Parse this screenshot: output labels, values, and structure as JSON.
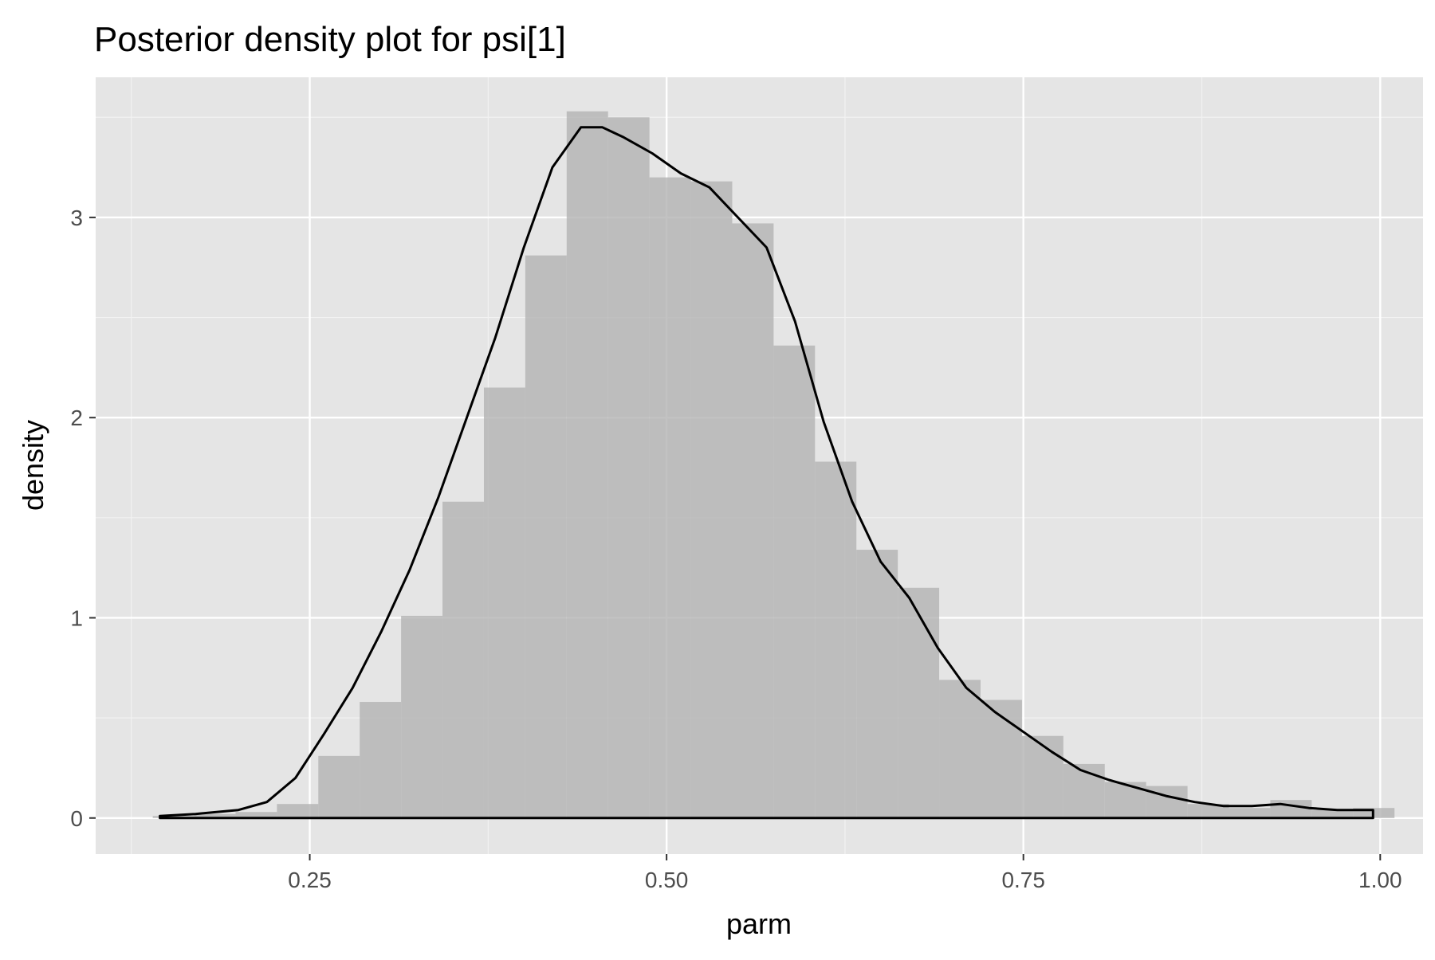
{
  "title": "Posterior density plot for psi[1]",
  "colors": {
    "panel_background": "#e5e5e5",
    "grid_major": "#ffffff",
    "grid_minor": "#f2f2f2",
    "histogram_fill": "#b3b3b3",
    "density_line": "#000000",
    "tick_label": "#4d4d4d",
    "axis_tick": "#333333"
  },
  "chart_data": {
    "type": "area",
    "title": "Posterior density plot for psi[1]",
    "xlabel": "parm",
    "ylabel": "density",
    "xlim": [
      0.1,
      1.03
    ],
    "ylim": [
      -0.18,
      3.7
    ],
    "grid": true,
    "x_ticks": [
      {
        "value": 0.25,
        "label": "0.25"
      },
      {
        "value": 0.5,
        "label": "0.50"
      },
      {
        "value": 0.75,
        "label": "0.75"
      },
      {
        "value": 1.0,
        "label": "1.00"
      }
    ],
    "x_minor_ticks": [
      0.125,
      0.375,
      0.625,
      0.875
    ],
    "y_ticks": [
      {
        "value": 0,
        "label": "0"
      },
      {
        "value": 1,
        "label": "1"
      },
      {
        "value": 2,
        "label": "2"
      },
      {
        "value": 3,
        "label": "3"
      }
    ],
    "y_minor_ticks": [
      0.5,
      1.5,
      2.5,
      3.5
    ],
    "histogram": {
      "bin_width": 0.029,
      "bin_starts": [
        0.14,
        0.169,
        0.198,
        0.227,
        0.256,
        0.285,
        0.314,
        0.343,
        0.372,
        0.401,
        0.43,
        0.459,
        0.488,
        0.517,
        0.546,
        0.575,
        0.604,
        0.633,
        0.662,
        0.691,
        0.72,
        0.749,
        0.778,
        0.807,
        0.836,
        0.865,
        0.894,
        0.923,
        0.952,
        0.981
      ],
      "densities": [
        0.01,
        0.02,
        0.03,
        0.07,
        0.31,
        0.58,
        1.01,
        1.58,
        2.15,
        2.81,
        3.53,
        3.5,
        3.2,
        3.18,
        2.97,
        2.36,
        1.78,
        1.34,
        1.15,
        0.69,
        0.59,
        0.41,
        0.27,
        0.18,
        0.16,
        0.07,
        0.05,
        0.09,
        0.04,
        0.05
      ]
    },
    "density": {
      "x": [
        0.145,
        0.17,
        0.2,
        0.22,
        0.24,
        0.26,
        0.28,
        0.3,
        0.32,
        0.34,
        0.36,
        0.38,
        0.4,
        0.42,
        0.44,
        0.455,
        0.47,
        0.49,
        0.51,
        0.53,
        0.55,
        0.57,
        0.59,
        0.61,
        0.63,
        0.65,
        0.67,
        0.69,
        0.71,
        0.73,
        0.75,
        0.77,
        0.79,
        0.81,
        0.83,
        0.85,
        0.87,
        0.89,
        0.91,
        0.93,
        0.95,
        0.97,
        0.995
      ],
      "y": [
        0.01,
        0.02,
        0.04,
        0.08,
        0.2,
        0.42,
        0.65,
        0.93,
        1.24,
        1.6,
        2.0,
        2.4,
        2.85,
        3.25,
        3.45,
        3.45,
        3.4,
        3.32,
        3.22,
        3.15,
        3.0,
        2.85,
        2.48,
        1.98,
        1.58,
        1.28,
        1.1,
        0.85,
        0.65,
        0.53,
        0.43,
        0.33,
        0.24,
        0.19,
        0.15,
        0.11,
        0.08,
        0.06,
        0.06,
        0.07,
        0.05,
        0.04,
        0.04
      ]
    }
  }
}
